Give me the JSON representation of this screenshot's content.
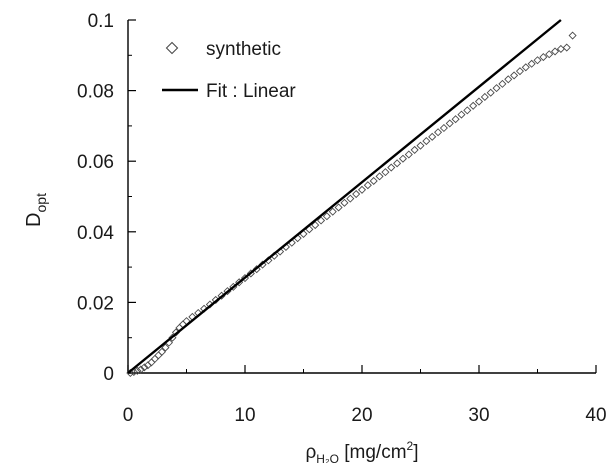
{
  "chart_data": {
    "type": "scatter",
    "title": "",
    "xlabel": {
      "base": "ρ",
      "sub": "H₂O",
      "units_prefix": " [mg/cm",
      "sup": "2",
      "units_suffix": "]"
    },
    "ylabel": {
      "base": "D",
      "sub": "opt"
    },
    "xlim": [
      0,
      40
    ],
    "ylim": [
      0,
      0.1
    ],
    "x_ticks": [
      0,
      10,
      20,
      30,
      40
    ],
    "x_tick_labels": [
      "0",
      "10",
      "20",
      "30",
      "40"
    ],
    "y_ticks": [
      0,
      0.02,
      0.04,
      0.06,
      0.08,
      0.1
    ],
    "y_tick_labels": [
      "0",
      "0.02",
      "0.04",
      "0.06",
      "0.08",
      "0.1"
    ],
    "legend_position": "top-left",
    "grid": false,
    "series": [
      {
        "name": "synthetic",
        "type": "scatter",
        "marker": "diamond",
        "color": "#4a4a4a",
        "x": [
          0.2,
          0.5,
          0.8,
          1.1,
          1.4,
          1.7,
          2.0,
          2.3,
          2.6,
          2.9,
          3.2,
          3.5,
          3.8,
          4.1,
          4.4,
          4.7,
          5.0,
          5.5,
          6.0,
          6.5,
          7.0,
          7.5,
          8.0,
          8.5,
          9.0,
          9.5,
          10.0,
          10.5,
          11.0,
          11.5,
          12.0,
          12.5,
          13.0,
          13.5,
          14.0,
          14.5,
          15.0,
          15.5,
          16.0,
          16.5,
          17.0,
          17.5,
          18.0,
          18.5,
          19.0,
          19.5,
          20.0,
          20.5,
          21.0,
          21.5,
          22.0,
          22.5,
          23.0,
          23.5,
          24.0,
          24.5,
          25.0,
          25.5,
          26.0,
          26.5,
          27.0,
          27.5,
          28.0,
          28.5,
          29.0,
          29.5,
          30.0,
          30.5,
          31.0,
          31.5,
          32.0,
          32.5,
          33.0,
          33.5,
          34.0,
          34.5,
          35.0,
          35.5,
          36.0,
          36.5,
          37.0,
          37.5,
          38.0
        ],
        "y": [
          0.0,
          0.0003,
          0.0006,
          0.001,
          0.0016,
          0.0022,
          0.003,
          0.004,
          0.005,
          0.006,
          0.0072,
          0.0086,
          0.01,
          0.0115,
          0.0128,
          0.0138,
          0.0147,
          0.0159,
          0.017,
          0.0182,
          0.0194,
          0.0207,
          0.0219,
          0.0232,
          0.0244,
          0.0257,
          0.0269,
          0.0282,
          0.0294,
          0.0307,
          0.0319,
          0.0332,
          0.0344,
          0.0357,
          0.0369,
          0.0382,
          0.0394,
          0.0407,
          0.0419,
          0.0432,
          0.0444,
          0.0457,
          0.0469,
          0.0482,
          0.0494,
          0.0507,
          0.0519,
          0.0532,
          0.0544,
          0.0557,
          0.0569,
          0.0582,
          0.0594,
          0.0607,
          0.0619,
          0.0632,
          0.0644,
          0.0657,
          0.0669,
          0.0682,
          0.0694,
          0.0707,
          0.0719,
          0.0732,
          0.0744,
          0.0757,
          0.0769,
          0.0782,
          0.0794,
          0.0807,
          0.0819,
          0.0832,
          0.0843,
          0.0855,
          0.0866,
          0.0876,
          0.0886,
          0.0895,
          0.0903,
          0.0911,
          0.0918,
          0.0922,
          0.0956
        ]
      },
      {
        "name": "Fit : Linear",
        "type": "line",
        "color": "#000000",
        "x": [
          0,
          37.0
        ],
        "y": [
          0.0,
          0.1
        ]
      }
    ]
  }
}
